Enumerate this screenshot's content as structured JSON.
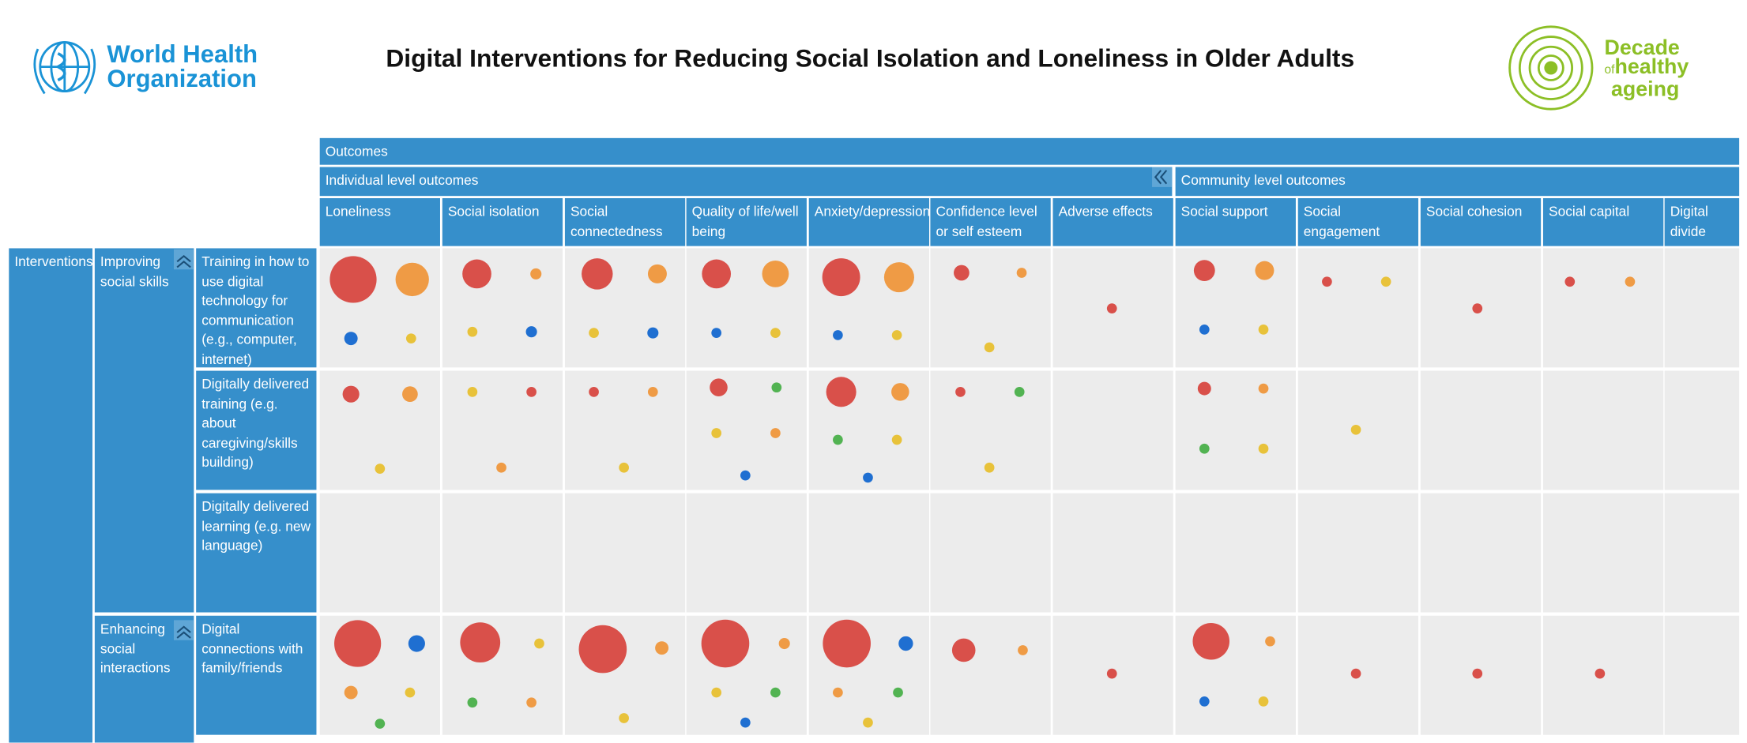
{
  "header": {
    "title": "Digital Interventions for Reducing Social Isolation and Loneliness in Older Adults",
    "who_logo": [
      "World Health",
      "Organization"
    ],
    "decade_logo": [
      "Decade",
      "of",
      "healthy",
      "ageing"
    ]
  },
  "table": {
    "outcomes_label": "Outcomes",
    "groups": [
      "Individual level outcomes",
      "Community level outcomes"
    ],
    "outcomes": [
      "Loneliness",
      "Social isolation",
      "Social connectedness",
      "Quality of life/well being",
      "Anxiety/depression",
      "Confidence level or self esteem",
      "Adverse effects",
      "Social support",
      "Social engagement",
      "Social cohesion",
      "Social capital",
      "Digital divide"
    ],
    "interventions_label": "Interventions",
    "categories": [
      {
        "label": "Improving social skills",
        "rows": [
          "Training in how to use digital technology for communication (e.g., computer, internet)",
          "Digitally delivered training (e.g. about caregiving/skills building)",
          "Digitally delivered learning (e.g. new language)"
        ]
      },
      {
        "label": "Enhancing social interactions",
        "rows": [
          "Digital connections with family/friends"
        ]
      }
    ]
  }
}
